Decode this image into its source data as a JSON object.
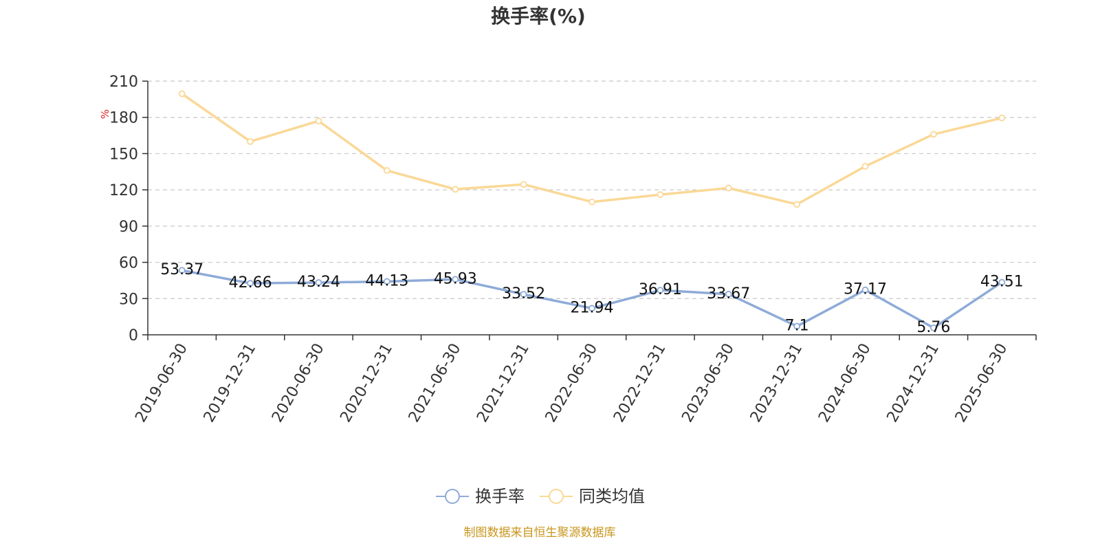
{
  "chart_data": {
    "type": "line",
    "title": "换手率(%)",
    "unit": "%",
    "source": "制图数据来自恒生聚源数据库",
    "categories": [
      "2019-06-30",
      "2019-12-31",
      "2020-06-30",
      "2020-12-31",
      "2021-06-30",
      "2021-12-31",
      "2022-06-30",
      "2022-12-31",
      "2023-06-30",
      "2023-12-31",
      "2024-06-30",
      "2024-12-31",
      "2025-06-30"
    ],
    "y_ticks": [
      "0",
      "30",
      "60",
      "90",
      "120",
      "150",
      "180",
      "210"
    ],
    "ylim": [
      0,
      210
    ],
    "grid": true,
    "legend_position": "bottom-center",
    "series": [
      {
        "name": "换手率",
        "color": "#8eabd8",
        "values": [
          53.37,
          42.66,
          43.24,
          44.13,
          45.93,
          33.52,
          21.94,
          36.91,
          33.67,
          7.1,
          37.17,
          5.76,
          43.51
        ],
        "labels": [
          "53.37",
          "42.66",
          "43.24",
          "44.13",
          "45.93",
          "33.52",
          "21.94",
          "36.91",
          "33.67",
          "7.1",
          "37.17",
          "5.76",
          "43.51"
        ]
      },
      {
        "name": "同类均值",
        "color": "#fad896",
        "values": [
          199.5,
          160.0,
          177.0,
          136.0,
          120.5,
          124.5,
          110.0,
          116.0,
          121.5,
          108.0,
          139.5,
          166.0,
          179.5
        ]
      }
    ]
  }
}
